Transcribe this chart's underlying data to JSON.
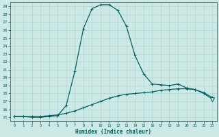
{
  "xlabel": "Humidex (Indice chaleur)",
  "xlim": [
    -0.5,
    23.5
  ],
  "ylim": [
    14.5,
    29.5
  ],
  "yticks": [
    15,
    16,
    17,
    18,
    19,
    20,
    21,
    22,
    23,
    24,
    25,
    26,
    27,
    28,
    29
  ],
  "xticks": [
    0,
    1,
    2,
    3,
    4,
    5,
    6,
    7,
    8,
    9,
    10,
    11,
    12,
    13,
    14,
    15,
    16,
    17,
    18,
    19,
    20,
    21,
    22,
    23
  ],
  "background_color": "#cce9e5",
  "grid_color": "#b0d8d4",
  "line_color": "#006060",
  "x_hours": [
    0,
    1,
    2,
    3,
    4,
    5,
    6,
    7,
    8,
    9,
    10,
    11,
    12,
    13,
    14,
    15,
    16,
    17,
    18,
    19,
    20,
    21,
    22,
    23
  ],
  "line1_y": [
    15.1,
    15.1,
    15.0,
    15.0,
    15.1,
    15.2,
    16.5,
    20.8,
    26.2,
    28.7,
    29.2,
    29.2,
    28.5,
    26.5,
    22.8,
    20.5,
    19.2,
    19.1,
    19.0,
    19.2,
    18.7,
    18.5,
    18.0,
    17.3
  ],
  "line2_y": [
    15.1,
    15.1,
    15.1,
    15.1,
    15.2,
    15.3,
    15.5,
    15.8,
    16.2,
    16.6,
    17.0,
    17.4,
    17.7,
    17.9,
    18.0,
    18.1,
    18.2,
    18.4,
    18.5,
    18.6,
    18.6,
    18.5,
    18.1,
    17.5
  ],
  "marker_style": "+",
  "marker_size": 3,
  "linewidth": 0.9,
  "triangle_x": 23,
  "triangle_y1": 17.3,
  "triangle_y2": 17.5
}
